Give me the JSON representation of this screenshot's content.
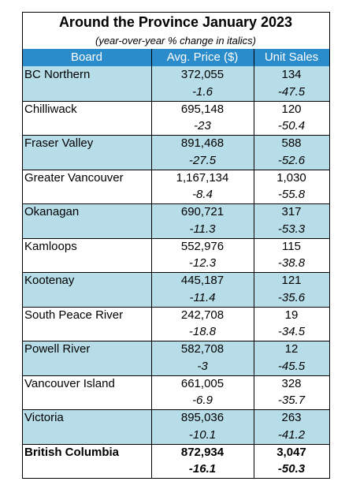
{
  "title": "Around the Province January 2023",
  "subtitle": "(year-over-year % change in italics)",
  "columns": [
    "Board",
    "Avg. Price ($)",
    "Unit Sales"
  ],
  "rows": [
    {
      "board": "BC Northern",
      "price": "372,055",
      "price_change": "-1.6",
      "sales": "134",
      "sales_change": "-47.5"
    },
    {
      "board": "Chilliwack",
      "price": "695,148",
      "price_change": "-23",
      "sales": "120",
      "sales_change": "-50.4"
    },
    {
      "board": "Fraser Valley",
      "price": "891,468",
      "price_change": "-27.5",
      "sales": "588",
      "sales_change": "-52.6"
    },
    {
      "board": "Greater Vancouver",
      "price": "1,167,134",
      "price_change": "-8.4",
      "sales": "1,030",
      "sales_change": "-55.8"
    },
    {
      "board": "Okanagan",
      "price": "690,721",
      "price_change": "-11.3",
      "sales": "317",
      "sales_change": "-53.3"
    },
    {
      "board": "Kamloops",
      "price": "552,976",
      "price_change": "-12.3",
      "sales": "115",
      "sales_change": "-38.8"
    },
    {
      "board": "Kootenay",
      "price": "445,187",
      "price_change": "-11.4",
      "sales": "121",
      "sales_change": "-35.6"
    },
    {
      "board": "South Peace River",
      "price": "242,708",
      "price_change": "-18.8",
      "sales": "19",
      "sales_change": "-34.5"
    },
    {
      "board": "Powell River",
      "price": "582,708",
      "price_change": "-3",
      "sales": "12",
      "sales_change": "-45.5"
    },
    {
      "board": "Vancouver Island",
      "price": "661,005",
      "price_change": "-6.9",
      "sales": "328",
      "sales_change": "-35.7"
    },
    {
      "board": "Victoria",
      "price": "895,036",
      "price_change": "-10.1",
      "sales": "263",
      "sales_change": "-41.2"
    },
    {
      "board": "British Columbia",
      "price": "872,934",
      "price_change": "-16.1",
      "sales": "3,047",
      "sales_change": "-50.3"
    }
  ]
}
